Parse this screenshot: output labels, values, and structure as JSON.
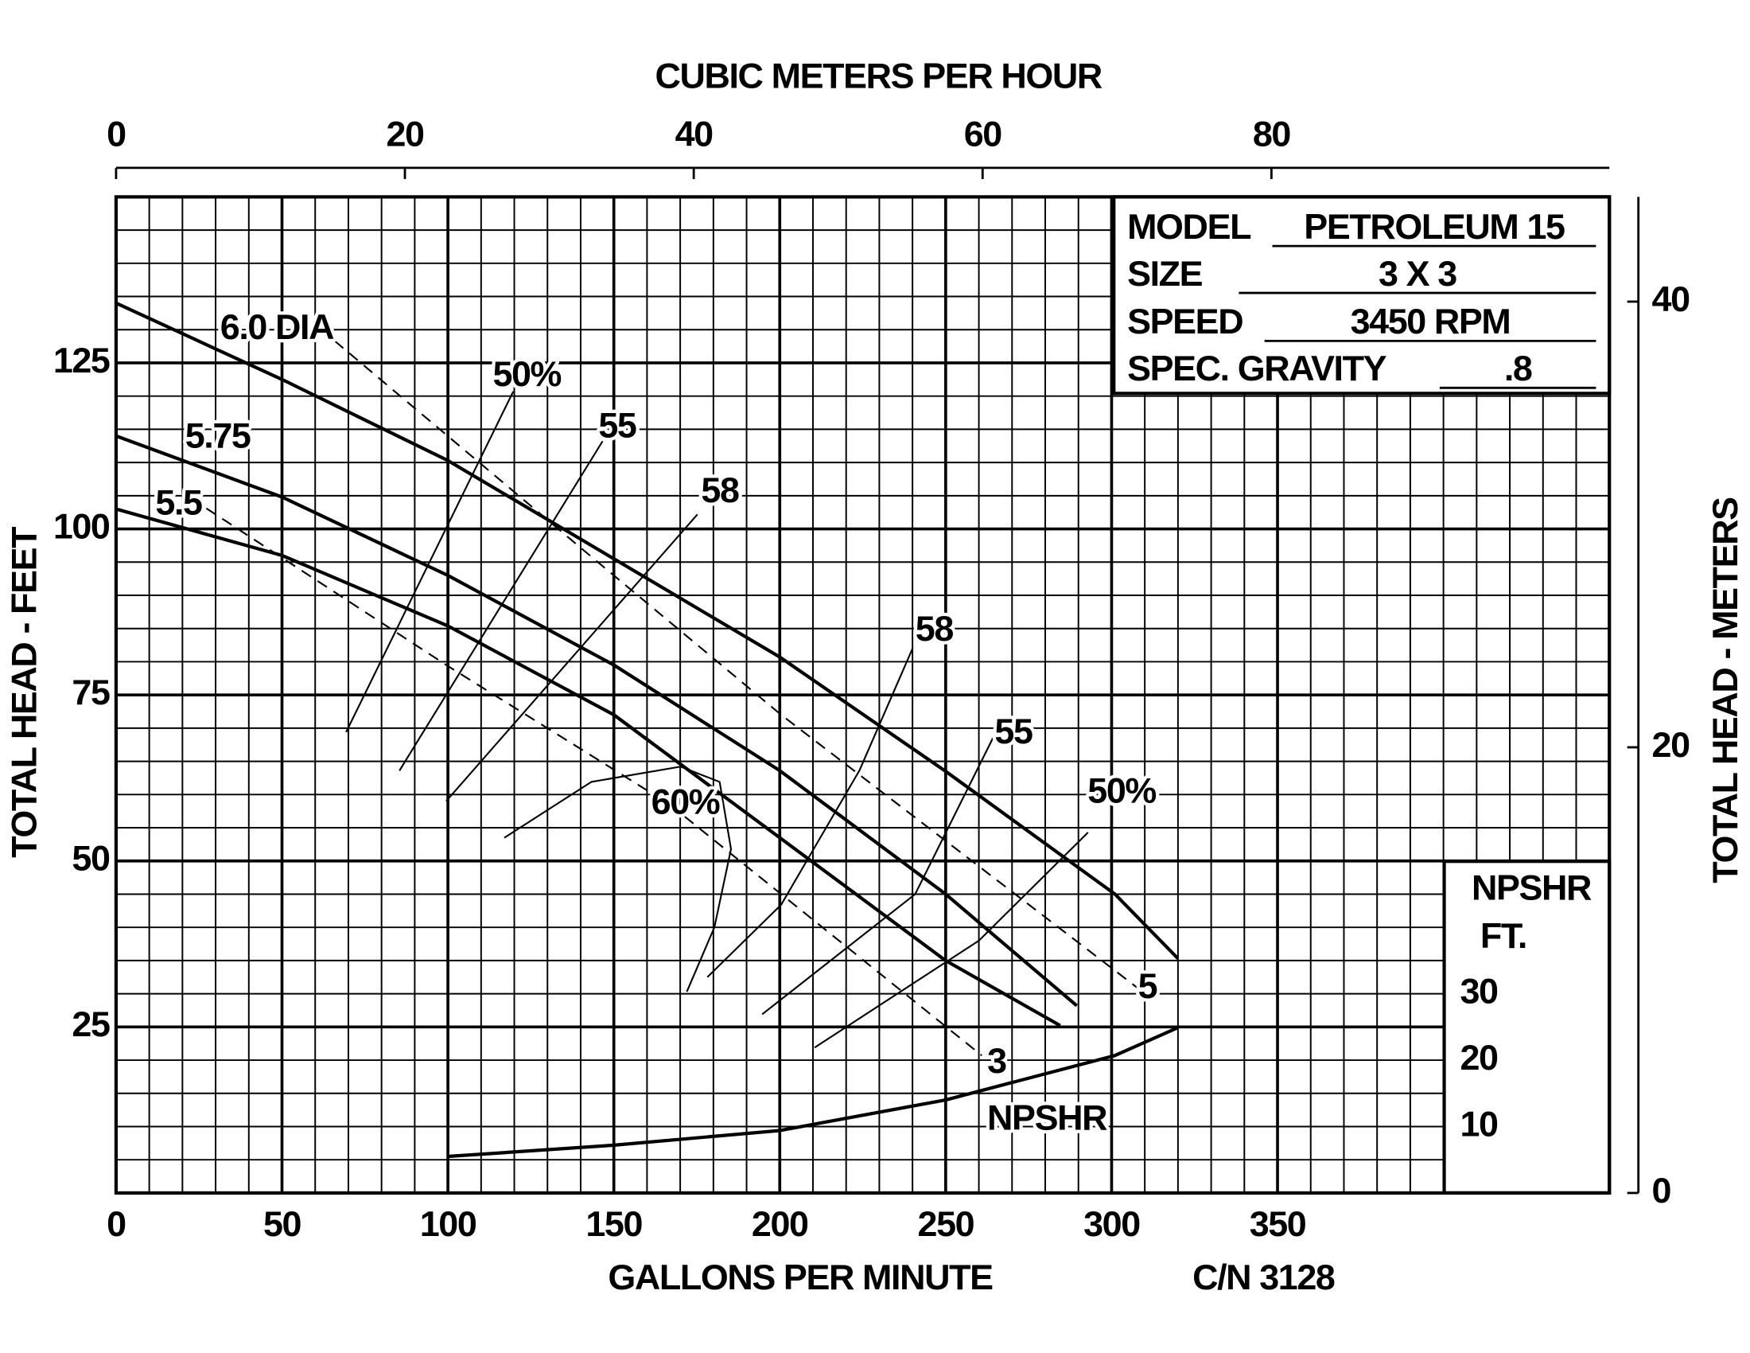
{
  "chart_data": {
    "type": "line",
    "title": "CUBIC METERS PER HOUR",
    "x_label": "GALLONS PER MINUTE",
    "y_label": "TOTAL HEAD - FEET",
    "y2_label": "TOTAL HEAD - METERS",
    "drawing_number": "C/N 3128",
    "xlim": [
      0,
      450
    ],
    "xticks": [
      0,
      50,
      100,
      150,
      200,
      250,
      300,
      350
    ],
    "ylim": [
      0,
      150
    ],
    "yticks": [
      25,
      50,
      75,
      100,
      125
    ],
    "x2lim": [
      0,
      103.4
    ],
    "x2ticks": [
      0,
      20,
      40,
      60,
      80
    ],
    "y2lim": [
      0,
      44.7
    ],
    "y2ticks": [
      0,
      20,
      40
    ],
    "grid": true,
    "info": [
      {
        "label": "MODEL",
        "value": "PETROLEUM 15"
      },
      {
        "label": "SIZE",
        "value": "3 X 3"
      },
      {
        "label": "SPEED",
        "value": "3450 RPM"
      },
      {
        "label": "SPEC. GRAVITY",
        "value": ".8"
      }
    ],
    "npshr_scale": {
      "title": "NPSHR",
      "unit": "FT.",
      "ticks": [
        30,
        20,
        10
      ]
    },
    "series": [
      {
        "name": "6.0 DIA",
        "color": "#000000",
        "style": "solid",
        "line_width": 3,
        "x": [
          0,
          50,
          100,
          150,
          200,
          250,
          301,
          320
        ],
        "values": [
          134,
          122.5,
          110.3,
          95.5,
          80.7,
          63.5,
          45,
          35.3
        ]
      },
      {
        "name": "5.75",
        "color": "#000000",
        "style": "solid",
        "line_width": 3,
        "x": [
          0,
          50,
          100,
          150,
          200,
          250,
          289.5
        ],
        "values": [
          114,
          104.8,
          93,
          79.5,
          63.6,
          45,
          28.2
        ]
      },
      {
        "name": "5.5",
        "color": "#000000",
        "style": "solid",
        "line_width": 3,
        "x": [
          0,
          50,
          100,
          150,
          200,
          250,
          284.5
        ],
        "values": [
          103,
          96,
          85.4,
          72,
          53.5,
          35,
          25.2
        ]
      },
      {
        "name": "5",
        "color": "#000000",
        "style": "dashed",
        "line_width": 1.5,
        "x": [
          65.9,
          139.9,
          200.4,
          308
        ],
        "values": [
          128.3,
          97.2,
          72,
          30.8
        ]
      },
      {
        "name": "3",
        "color": "#000000",
        "style": "dashed",
        "line_width": 1.5,
        "x": [
          27.2,
          99.5,
          166.8,
          260.9
        ],
        "values": [
          103.1,
          79.5,
          58.5,
          20.7
        ]
      },
      {
        "name": "NPSHR",
        "color": "#000000",
        "style": "solid",
        "line_width": 3,
        "x": [
          100,
          150,
          200,
          250,
          301,
          320
        ],
        "values": [
          5.5,
          7.2,
          9.4,
          14,
          20.7,
          24.9
        ]
      },
      {
        "name": "50%",
        "color": "#000000",
        "style": "solid",
        "line_width": 1.5,
        "x": [
          69.3,
          119.7
        ],
        "values": [
          69.4,
          120.7
        ]
      },
      {
        "name": "55",
        "color": "#000000",
        "style": "solid",
        "line_width": 1.5,
        "x": [
          85.4,
          146.6
        ],
        "values": [
          63.6,
          113.2
        ]
      },
      {
        "name": "58",
        "color": "#000000",
        "style": "solid",
        "line_width": 1.5,
        "x": [
          99.5,
          175.2
        ],
        "values": [
          59,
          102.2
        ]
      },
      {
        "name": "60%",
        "color": "#000000",
        "style": "solid",
        "line_width": 1.5,
        "x": [
          117,
          143.2,
          170.1,
          181.9,
          185.3,
          180.3,
          172
        ],
        "values": [
          53.5,
          61.9,
          64.2,
          61.9,
          51.8,
          40,
          30.3
        ]
      },
      {
        "name": "58",
        "color": "#000000",
        "style": "solid",
        "line_width": 1.5,
        "x": [
          178.2,
          200.4,
          224,
          240.1
        ],
        "values": [
          32.5,
          43.4,
          63.6,
          82.1
        ]
      },
      {
        "name": "55",
        "color": "#000000",
        "style": "solid",
        "line_width": 1.5,
        "x": [
          194.7,
          240.8,
          264.3
        ],
        "values": [
          26.9,
          45,
          68.6
        ]
      },
      {
        "name": "50%",
        "color": "#000000",
        "style": "solid",
        "line_width": 1.5,
        "x": [
          210.5,
          260,
          292.9
        ],
        "values": [
          21.9,
          38,
          54.3
        ]
      }
    ]
  }
}
